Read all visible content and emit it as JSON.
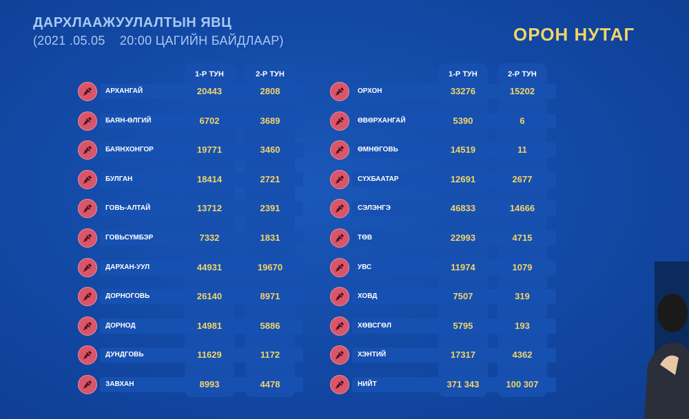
{
  "header": {
    "title": "ДАРХЛААЖУУЛАЛТЫН ЯВЦ",
    "subtitle": "(2021 .05.05    20:00 ЦАГИЙН БАЙДЛААР)",
    "section": "ОРОН НУТАГ"
  },
  "columns": {
    "first": "1-Р ТУН",
    "second": "2-Р ТУН"
  },
  "left_rows": [
    {
      "name": "АРХАНГАЙ",
      "first": "20443",
      "second": "2808"
    },
    {
      "name": "БАЯН-ӨЛГИЙ",
      "first": "6702",
      "second": "3689"
    },
    {
      "name": "БАЯНХОНГОР",
      "first": "19771",
      "second": "3460"
    },
    {
      "name": "БУЛГАН",
      "first": "18414",
      "second": "2721"
    },
    {
      "name": "ГОВЬ-АЛТАЙ",
      "first": "13712",
      "second": "2391"
    },
    {
      "name": "ГОВЬСҮМБЭР",
      "first": "7332",
      "second": "1831"
    },
    {
      "name": "ДАРХАН-УУЛ",
      "first": "44931",
      "second": "19670"
    },
    {
      "name": "ДОРНОГОВЬ",
      "first": "26140",
      "second": "8971"
    },
    {
      "name": "ДОРНОД",
      "first": "14981",
      "second": "5886"
    },
    {
      "name": "ДУНДГОВЬ",
      "first": "11629",
      "second": "1172"
    },
    {
      "name": "ЗАВХАН",
      "first": "8993",
      "second": "4478"
    }
  ],
  "right_rows": [
    {
      "name": "ОРХОН",
      "first": "33276",
      "second": "15202"
    },
    {
      "name": "ӨВӨРХАНГАЙ",
      "first": "5390",
      "second": "6"
    },
    {
      "name": "ӨМНӨГОВЬ",
      "first": "14519",
      "second": "11"
    },
    {
      "name": "СҮХБААТАР",
      "first": "12691",
      "second": "2677"
    },
    {
      "name": "СЭЛЭНГЭ",
      "first": "46833",
      "second": "14666"
    },
    {
      "name": "ТӨВ",
      "first": "22993",
      "second": "4715"
    },
    {
      "name": "УВС",
      "first": "11974",
      "second": "1079"
    },
    {
      "name": "ХОВД",
      "first": "7507",
      "second": "319"
    },
    {
      "name": "ХӨВСГӨЛ",
      "first": "5795",
      "second": "193"
    },
    {
      "name": "ХЭНТИЙ",
      "first": "17317",
      "second": "4362"
    },
    {
      "name": "НИЙТ",
      "first": "371 343",
      "second": "100 307"
    }
  ],
  "icons": {
    "row_icon": "syringe-icon"
  },
  "colors": {
    "background": "#1248a4",
    "accent": "#f3d46a",
    "icon": "#d9566a",
    "title": "#a9c8f2"
  }
}
